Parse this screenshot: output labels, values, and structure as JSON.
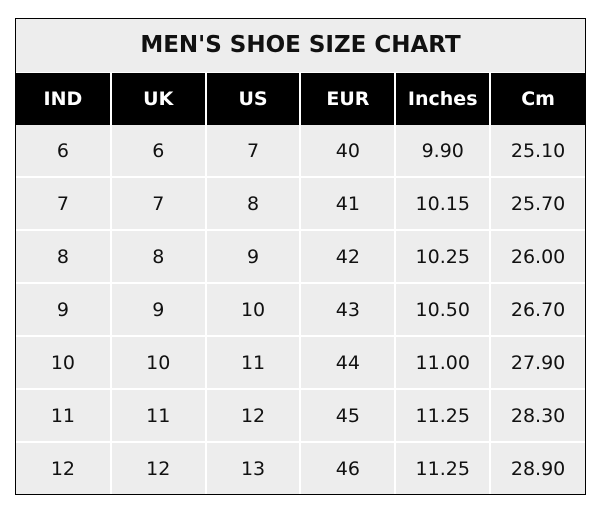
{
  "title": "MEN'S SHOE SIZE CHART",
  "columns": [
    "IND",
    "UK",
    "US",
    "EUR",
    "Inches",
    "Cm"
  ],
  "rows": [
    [
      "6",
      "6",
      "7",
      "40",
      "9.90",
      "25.10"
    ],
    [
      "7",
      "7",
      "8",
      "41",
      "10.15",
      "25.70"
    ],
    [
      "8",
      "8",
      "9",
      "42",
      "10.25",
      "26.00"
    ],
    [
      "9",
      "9",
      "10",
      "43",
      "10.50",
      "26.70"
    ],
    [
      "10",
      "10",
      "11",
      "44",
      "11.00",
      "27.90"
    ],
    [
      "11",
      "11",
      "12",
      "45",
      "11.25",
      "28.30"
    ],
    [
      "12",
      "12",
      "13",
      "46",
      "11.25",
      "28.90"
    ]
  ],
  "colors": {
    "header_bg": "#000000",
    "header_text": "#ffffff",
    "cell_bg": "#ededed",
    "grid": "#ffffff"
  }
}
